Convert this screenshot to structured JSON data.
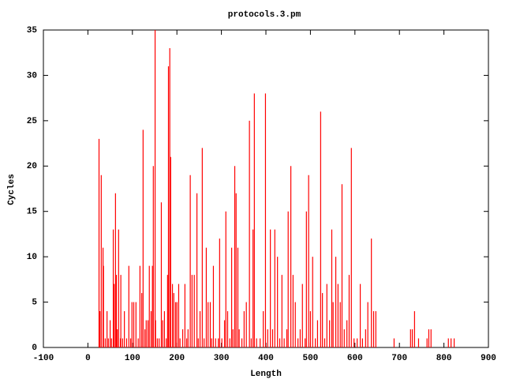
{
  "chart_data": {
    "type": "impulse",
    "title": "protocols.3.pm",
    "x_label": "Length",
    "y_label": "Cycles",
    "color": "#ff0000",
    "xlim": [
      -100,
      900
    ],
    "ylim": [
      0,
      35
    ],
    "xticks": [
      -100,
      0,
      100,
      200,
      300,
      400,
      500,
      600,
      700,
      800,
      900
    ],
    "yticks": [
      0,
      5,
      10,
      15,
      20,
      25,
      30,
      35
    ],
    "x": [
      25,
      27,
      30,
      34,
      35,
      39,
      43,
      46,
      50,
      53,
      57,
      59,
      62,
      64,
      66,
      69,
      73,
      74,
      78,
      82,
      87,
      92,
      96,
      99,
      103,
      108,
      113,
      117,
      121,
      124,
      128,
      131,
      135,
      138,
      142,
      145,
      147,
      151,
      152,
      156,
      160,
      165,
      168,
      172,
      176,
      179,
      181,
      184,
      186,
      190,
      193,
      197,
      200,
      204,
      207,
      213,
      218,
      222,
      225,
      230,
      234,
      239,
      245,
      248,
      252,
      257,
      261,
      266,
      270,
      275,
      278,
      282,
      287,
      293,
      296,
      301,
      307,
      310,
      314,
      319,
      323,
      326,
      330,
      333,
      337,
      340,
      346,
      351,
      356,
      363,
      367,
      371,
      374,
      379,
      387,
      394,
      399,
      404,
      410,
      415,
      420,
      426,
      431,
      436,
      441,
      447,
      450,
      456,
      461,
      466,
      472,
      477,
      482,
      488,
      491,
      496,
      500,
      505,
      511,
      516,
      523,
      527,
      532,
      537,
      543,
      548,
      551,
      557,
      562,
      567,
      571,
      576,
      582,
      587,
      592,
      598,
      605,
      612,
      617,
      624,
      629,
      637,
      642,
      647,
      688,
      725,
      729,
      734,
      743,
      762,
      766,
      771,
      810,
      816,
      823
    ],
    "values": [
      23,
      4,
      19,
      11,
      9,
      1,
      4,
      1,
      3,
      1,
      13,
      7,
      17,
      8,
      2,
      13,
      1,
      8,
      1,
      4,
      1,
      9,
      1,
      5,
      5,
      5,
      1,
      9,
      6,
      24,
      2,
      3,
      3,
      9,
      4,
      9,
      20,
      35,
      3,
      1,
      1,
      16,
      3,
      4,
      1,
      8,
      31,
      33,
      21,
      7,
      6,
      5,
      5,
      7,
      1,
      2,
      7,
      1,
      2,
      19,
      8,
      8,
      17,
      1,
      4,
      22,
      1,
      11,
      5,
      5,
      1,
      9,
      1,
      1,
      12,
      1,
      3,
      15,
      4,
      1,
      11,
      2,
      20,
      17,
      11,
      2,
      1,
      4,
      5,
      25,
      1,
      13,
      28,
      1,
      1,
      4,
      28,
      2,
      13,
      2,
      13,
      10,
      1,
      8,
      1,
      2,
      15,
      20,
      8,
      5,
      1,
      2,
      7,
      1,
      15,
      19,
      4,
      10,
      1,
      3,
      26,
      6,
      1,
      7,
      3,
      13,
      5,
      10,
      7,
      5,
      18,
      2,
      3,
      8,
      22,
      1,
      1,
      7,
      1,
      2,
      5,
      12,
      4,
      4,
      1,
      2,
      2,
      4,
      1,
      1,
      2,
      2,
      1,
      1,
      1
    ]
  }
}
